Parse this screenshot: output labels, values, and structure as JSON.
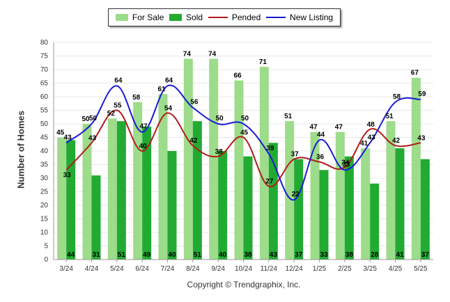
{
  "legend": {
    "for_sale": "For Sale",
    "sold": "Sold",
    "pended": "Pended",
    "new_listing": "New Listing"
  },
  "copyright": "Copyright © Trendgraphix, Inc.",
  "colors": {
    "for_sale": "#9ddc8a",
    "sold": "#22aa33",
    "pended": "#b31b1b",
    "new_listing": "#1a1ad6",
    "grid": "#e8e8e8",
    "axis": "#999999"
  },
  "chart_data": {
    "type": "bar",
    "title": "",
    "xlabel": "",
    "ylabel": "Number of Homes",
    "ylim": [
      0,
      80
    ],
    "yticks": [
      0,
      5,
      10,
      15,
      20,
      25,
      30,
      35,
      40,
      45,
      50,
      55,
      60,
      65,
      70,
      75,
      80
    ],
    "grid": true,
    "legend_position": "top-center",
    "categories": [
      "3/24",
      "4/24",
      "5/24",
      "6/24",
      "7/24",
      "8/24",
      "9/24",
      "10/24",
      "11/24",
      "12/24",
      "1/25",
      "2/25",
      "3/25",
      "4/25",
      "5/25"
    ],
    "series": [
      {
        "name": "For Sale",
        "kind": "bar",
        "values": [
          45,
          50,
          52,
          58,
          61,
          74,
          74,
          66,
          71,
          51,
          47,
          47,
          41,
          51,
          67
        ]
      },
      {
        "name": "Sold",
        "kind": "bar",
        "values": [
          44,
          31,
          51,
          49,
          40,
          51,
          40,
          38,
          43,
          37,
          33,
          38,
          28,
          41,
          37
        ]
      },
      {
        "name": "Pended",
        "kind": "line",
        "values": [
          33,
          43,
          55,
          40,
          54,
          42,
          38,
          45,
          27,
          37,
          36,
          34,
          48,
          42,
          43
        ]
      },
      {
        "name": "New Listing",
        "kind": "line",
        "values": [
          43,
          50,
          64,
          47,
          64,
          56,
          50,
          50,
          39,
          22,
          44,
          33,
          43,
          58,
          59
        ]
      }
    ]
  }
}
